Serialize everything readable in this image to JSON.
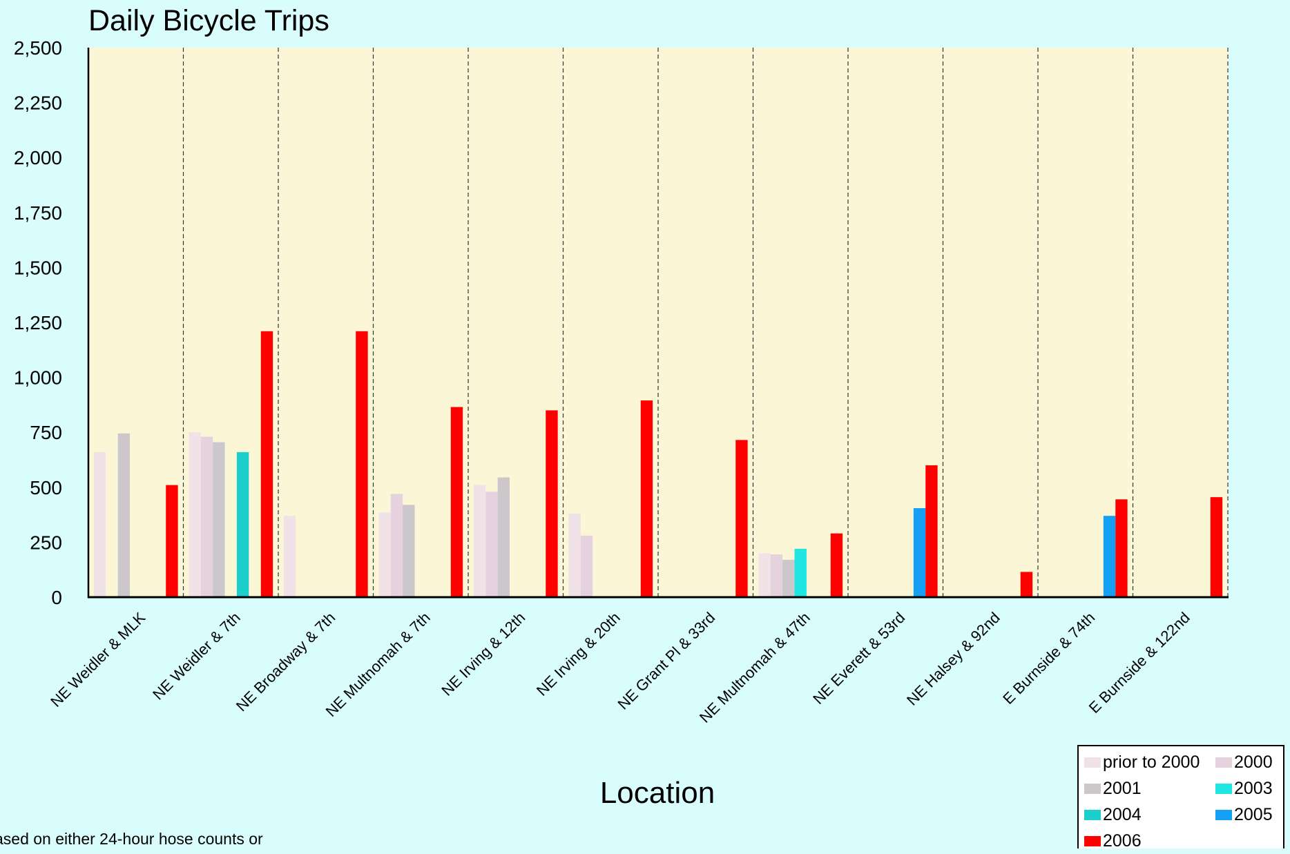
{
  "chart_data": {
    "type": "bar",
    "title": "Daily Bicycle Trips",
    "xlabel": "Location",
    "ylabel": "",
    "ylim": [
      0,
      2500
    ],
    "yticks": [
      "0",
      "250",
      "500",
      "750",
      "1,000",
      "1,250",
      "1,500",
      "1,750",
      "2,000",
      "2,250",
      "2,500"
    ],
    "categories": [
      "NE Weidler & MLK",
      "NE Weidler & 7th",
      "NE Broadway & 7th",
      "NE Multnomah & 7th",
      "NE Irving & 12th",
      "NE Irving & 20th",
      "NE Grant Pl & 33rd",
      "NE Multnomah & 47th",
      "NE Everett & 53rd",
      "NE Halsey & 92nd",
      "E Burnside & 74th",
      "E Burnside & 122nd"
    ],
    "series": [
      {
        "name": "prior to 2000",
        "color": "#f0e2e6",
        "values": [
          660,
          750,
          370,
          385,
          510,
          380,
          null,
          200,
          null,
          null,
          null,
          null
        ]
      },
      {
        "name": "2000",
        "color": "#e6d2de",
        "values": [
          null,
          730,
          null,
          470,
          480,
          280,
          null,
          195,
          null,
          null,
          null,
          null
        ]
      },
      {
        "name": "2001",
        "color": "#cbc7cb",
        "values": [
          745,
          705,
          null,
          420,
          545,
          null,
          null,
          170,
          null,
          null,
          null,
          null
        ]
      },
      {
        "name": "2003",
        "color": "#1fe6e0",
        "values": [
          null,
          null,
          null,
          null,
          null,
          null,
          null,
          220,
          null,
          null,
          null,
          null
        ]
      },
      {
        "name": "2004",
        "color": "#1ccfcc",
        "values": [
          null,
          660,
          null,
          null,
          null,
          null,
          null,
          null,
          null,
          null,
          null,
          null
        ]
      },
      {
        "name": "2005",
        "color": "#13a0f5",
        "values": [
          null,
          null,
          null,
          null,
          null,
          null,
          null,
          null,
          405,
          null,
          370,
          null
        ]
      },
      {
        "name": "2006",
        "color": "#ff0000",
        "values": [
          510,
          1210,
          1210,
          865,
          850,
          895,
          715,
          290,
          600,
          115,
          445,
          455
        ]
      }
    ],
    "grid": "vertical dashed separators between categories",
    "legend_position": "bottom-right",
    "plot_background": "#fbf7d6",
    "page_background": "#d9fdfd"
  },
  "footnote": "ased on either 24-hour hose counts or"
}
